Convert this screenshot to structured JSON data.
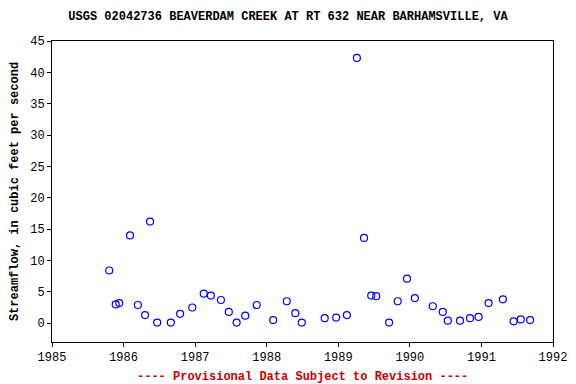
{
  "chart_data": {
    "type": "scatter",
    "title": "USGS 02042736 BEAVERDAM CREEK AT RT 632 NEAR BARHAMSVILLE, VA",
    "y_label": "Streamflow, in cubic feet per second",
    "annotations": [
      "---- Provisional Data Subject to Revision ----"
    ],
    "x": [
      1985.8,
      1985.89,
      1985.94,
      1986.09,
      1986.2,
      1986.3,
      1986.37,
      1986.47,
      1986.66,
      1986.79,
      1986.96,
      1987.12,
      1987.22,
      1987.36,
      1987.47,
      1987.58,
      1987.7,
      1987.86,
      1988.09,
      1988.28,
      1988.4,
      1988.49,
      1988.81,
      1988.97,
      1989.12,
      1989.26,
      1989.36,
      1989.46,
      1989.53,
      1989.71,
      1989.83,
      1989.96,
      1990.07,
      1990.32,
      1990.46,
      1990.53,
      1990.7,
      1990.84,
      1990.96,
      1991.1,
      1991.3,
      1991.45,
      1991.55,
      1991.68
    ],
    "values": [
      8.4,
      3.0,
      3.2,
      14.0,
      2.9,
      1.3,
      16.2,
      0.1,
      0.1,
      1.5,
      2.5,
      4.7,
      4.4,
      3.7,
      1.8,
      0.1,
      1.2,
      2.9,
      0.5,
      3.5,
      1.6,
      0.1,
      0.8,
      0.9,
      1.3,
      42.3,
      13.6,
      4.4,
      4.3,
      0.1,
      3.5,
      7.1,
      4.0,
      2.7,
      1.8,
      0.4,
      0.4,
      0.8,
      1.0,
      3.2,
      3.8,
      0.3,
      0.6,
      0.5
    ],
    "color": "#0000ff",
    "marker": "circle-open",
    "xlim": [
      1985,
      1992
    ],
    "xticks": [
      1985,
      1986,
      1987,
      1988,
      1989,
      1990,
      1991,
      1992
    ],
    "ylim": [
      -3,
      45
    ],
    "yticks": [
      0,
      5,
      10,
      15,
      20,
      25,
      30,
      35,
      40,
      45
    ],
    "grid": false
  }
}
